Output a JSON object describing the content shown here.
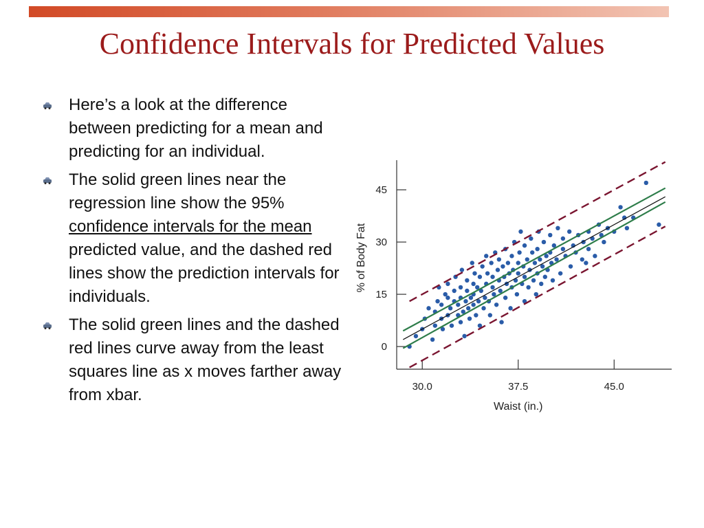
{
  "slide": {
    "title": "Confidence Intervals for Predicted Values"
  },
  "bullets": [
    {
      "text_before": "Here’s a look at the difference between predicting for a mean and predicting for an individual.",
      "link_text": "",
      "text_after": ""
    },
    {
      "text_before": "The solid green lines near the regression line show the 95% ",
      "link_text": "confidence intervals for the mean",
      "text_after": " predicted value, and the dashed red lines show the prediction intervals for individuals."
    },
    {
      "text_before": "The solid green lines and the dashed red lines curve away from the least squares line as x moves farther away from xbar.",
      "link_text": "",
      "text_after": ""
    }
  ],
  "icons": {
    "bullet": "car-bullet-icon"
  },
  "colors": {
    "title": "#9b1b1b",
    "bar_start": "#d24a26",
    "points": "#2a5ca8",
    "ci_lines": "#2e7d4a",
    "pi_lines": "#7a1530",
    "regression": "#111111"
  },
  "chart_data": {
    "type": "scatter",
    "xlabel": "Waist (in.)",
    "ylabel": "% of Body Fat",
    "xticks": [
      30.0,
      37.5,
      45.0
    ],
    "xtick_labels": [
      "30.0",
      "37.5",
      "45.0"
    ],
    "yticks": [
      0,
      15,
      30,
      45
    ],
    "ytick_labels": [
      "0",
      "15",
      "30",
      "45"
    ],
    "xlim": [
      28.0,
      49.5
    ],
    "ylim": [
      -6.5,
      53.5
    ],
    "regression": {
      "x": [
        28.5,
        49.0
      ],
      "y": [
        2.0,
        43.0
      ]
    },
    "ci_upper": {
      "x": [
        28.5,
        49.0
      ],
      "y": [
        4.5,
        45.5
      ]
    },
    "ci_lower": {
      "x": [
        28.5,
        49.0
      ],
      "y": [
        -0.5,
        41.5
      ]
    },
    "pi_upper": {
      "x": [
        29.0,
        49.0
      ],
      "y": [
        13.0,
        53.0
      ]
    },
    "pi_lower": {
      "x": [
        29.0,
        49.0
      ],
      "y": [
        -6.0,
        34.5
      ]
    },
    "points": [
      [
        29.0,
        0.0
      ],
      [
        29.5,
        3.0
      ],
      [
        30.0,
        5.0
      ],
      [
        30.2,
        8.0
      ],
      [
        30.5,
        11.0
      ],
      [
        30.8,
        2.0
      ],
      [
        31.0,
        6.0
      ],
      [
        31.0,
        10.0
      ],
      [
        31.2,
        13.0
      ],
      [
        31.3,
        17.0
      ],
      [
        31.5,
        8.0
      ],
      [
        31.5,
        12.0
      ],
      [
        31.6,
        5.0
      ],
      [
        31.8,
        15.0
      ],
      [
        32.0,
        9.0
      ],
      [
        32.0,
        14.0
      ],
      [
        32.0,
        18.0
      ],
      [
        32.2,
        11.0
      ],
      [
        32.3,
        6.0
      ],
      [
        32.5,
        13.0
      ],
      [
        32.5,
        16.0
      ],
      [
        32.6,
        20.0
      ],
      [
        32.8,
        9.0
      ],
      [
        32.8,
        12.0
      ],
      [
        33.0,
        7.0
      ],
      [
        33.0,
        14.0
      ],
      [
        33.0,
        17.0
      ],
      [
        33.1,
        22.0
      ],
      [
        33.2,
        10.0
      ],
      [
        33.3,
        3.0
      ],
      [
        33.4,
        13.0
      ],
      [
        33.5,
        16.0
      ],
      [
        33.5,
        19.0
      ],
      [
        33.6,
        11.0
      ],
      [
        33.7,
        8.0
      ],
      [
        33.8,
        14.0
      ],
      [
        33.9,
        24.0
      ],
      [
        34.0,
        12.0
      ],
      [
        34.0,
        15.0
      ],
      [
        34.0,
        18.0
      ],
      [
        34.1,
        21.0
      ],
      [
        34.2,
        9.0
      ],
      [
        34.3,
        17.0
      ],
      [
        34.4,
        13.0
      ],
      [
        34.5,
        6.0
      ],
      [
        34.5,
        20.0
      ],
      [
        34.6,
        16.0
      ],
      [
        34.7,
        23.0
      ],
      [
        34.8,
        11.0
      ],
      [
        34.9,
        14.0
      ],
      [
        35.0,
        18.0
      ],
      [
        35.0,
        26.0
      ],
      [
        35.1,
        21.0
      ],
      [
        35.2,
        13.0
      ],
      [
        35.3,
        9.0
      ],
      [
        35.4,
        24.0
      ],
      [
        35.5,
        17.0
      ],
      [
        35.5,
        20.0
      ],
      [
        35.6,
        15.0
      ],
      [
        35.7,
        27.0
      ],
      [
        35.8,
        12.0
      ],
      [
        35.9,
        22.0
      ],
      [
        36.0,
        19.0
      ],
      [
        36.0,
        25.0
      ],
      [
        36.1,
        16.0
      ],
      [
        36.2,
        7.0
      ],
      [
        36.3,
        23.0
      ],
      [
        36.4,
        20.0
      ],
      [
        36.5,
        14.0
      ],
      [
        36.5,
        28.0
      ],
      [
        36.6,
        18.0
      ],
      [
        36.7,
        24.0
      ],
      [
        36.8,
        21.0
      ],
      [
        36.9,
        11.0
      ],
      [
        37.0,
        17.0
      ],
      [
        37.0,
        26.0
      ],
      [
        37.1,
        22.0
      ],
      [
        37.2,
        30.0
      ],
      [
        37.3,
        19.0
      ],
      [
        37.4,
        15.0
      ],
      [
        37.5,
        24.0
      ],
      [
        37.5,
        21.0
      ],
      [
        37.6,
        27.0
      ],
      [
        37.7,
        33.0
      ],
      [
        37.8,
        18.0
      ],
      [
        37.9,
        23.0
      ],
      [
        38.0,
        13.0
      ],
      [
        38.0,
        20.0
      ],
      [
        38.0,
        29.0
      ],
      [
        38.2,
        25.0
      ],
      [
        38.3,
        17.0
      ],
      [
        38.4,
        22.0
      ],
      [
        38.5,
        31.0
      ],
      [
        38.6,
        27.0
      ],
      [
        38.7,
        19.0
      ],
      [
        38.8,
        24.0
      ],
      [
        38.9,
        15.0
      ],
      [
        39.0,
        21.0
      ],
      [
        39.0,
        28.0
      ],
      [
        39.1,
        33.0
      ],
      [
        39.2,
        25.0
      ],
      [
        39.3,
        18.0
      ],
      [
        39.4,
        23.0
      ],
      [
        39.5,
        30.0
      ],
      [
        39.6,
        20.0
      ],
      [
        39.7,
        26.0
      ],
      [
        39.8,
        22.0
      ],
      [
        40.0,
        27.0
      ],
      [
        40.0,
        32.0
      ],
      [
        40.1,
        24.0
      ],
      [
        40.2,
        19.0
      ],
      [
        40.3,
        29.0
      ],
      [
        40.5,
        25.0
      ],
      [
        40.6,
        34.0
      ],
      [
        40.8,
        21.0
      ],
      [
        41.0,
        28.0
      ],
      [
        41.0,
        31.0
      ],
      [
        41.2,
        26.0
      ],
      [
        41.5,
        33.0
      ],
      [
        41.6,
        23.0
      ],
      [
        41.8,
        29.0
      ],
      [
        42.0,
        27.0
      ],
      [
        42.2,
        32.0
      ],
      [
        42.5,
        25.0
      ],
      [
        42.6,
        30.0
      ],
      [
        42.8,
        24.0
      ],
      [
        43.0,
        33.0
      ],
      [
        43.0,
        28.0
      ],
      [
        43.3,
        31.0
      ],
      [
        43.5,
        26.0
      ],
      [
        43.8,
        35.0
      ],
      [
        44.0,
        32.0
      ],
      [
        44.2,
        30.0
      ],
      [
        44.5,
        34.0
      ],
      [
        45.0,
        33.0
      ],
      [
        45.5,
        40.0
      ],
      [
        45.8,
        37.0
      ],
      [
        46.0,
        34.0
      ],
      [
        46.5,
        37.0
      ],
      [
        47.5,
        47.0
      ],
      [
        48.5,
        35.0
      ]
    ]
  }
}
